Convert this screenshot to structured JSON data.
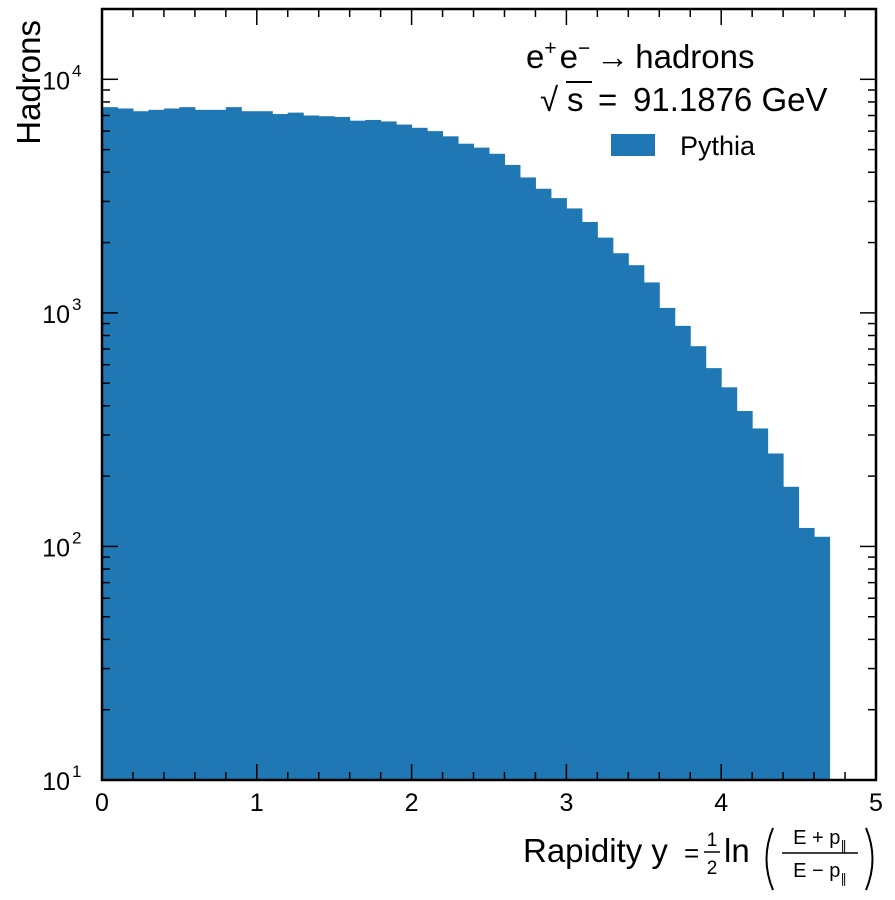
{
  "chart_data": {
    "type": "bar",
    "histogram": true,
    "bin_edges_start": 0.0,
    "bin_width": 0.1,
    "values": [
      7600,
      7500,
      7300,
      7400,
      7500,
      7600,
      7400,
      7400,
      7600,
      7300,
      7300,
      7100,
      7200,
      7000,
      6950,
      6900,
      6650,
      6700,
      6600,
      6400,
      6200,
      6000,
      5700,
      5300,
      5100,
      4800,
      4300,
      3800,
      3400,
      3100,
      2800,
      2450,
      2100,
      1800,
      1600,
      1350,
      1050,
      880,
      720,
      580,
      480,
      380,
      320,
      250,
      180,
      120,
      110
    ],
    "xlabel_prefix": "Rapidity y",
    "ylabel": "Hadrons",
    "xlim": [
      0,
      5
    ],
    "ylim": [
      10,
      20000
    ],
    "yscale": "log",
    "x_ticks": [
      "0",
      "1",
      "2",
      "3",
      "4",
      "5"
    ],
    "y_ticks": [
      {
        "base": "10",
        "exp": "1",
        "value": 10
      },
      {
        "base": "10",
        "exp": "2",
        "value": 100
      },
      {
        "base": "10",
        "exp": "3",
        "value": 1000
      },
      {
        "base": "10",
        "exp": "4",
        "value": 10000
      }
    ],
    "series": [
      {
        "name": "Pythia",
        "color": "#1f77b4"
      }
    ],
    "legend_placement": "top-right",
    "grid": false,
    "annotation": {
      "process": {
        "e1": "e",
        "p1": "+",
        "e2": "e",
        "p2": "−",
        "arrow": "→",
        "rest": "hadrons"
      },
      "energy": {
        "sqrt": "√",
        "var": "s",
        "eq": "=",
        "value": "91.1876 GeV"
      }
    }
  }
}
